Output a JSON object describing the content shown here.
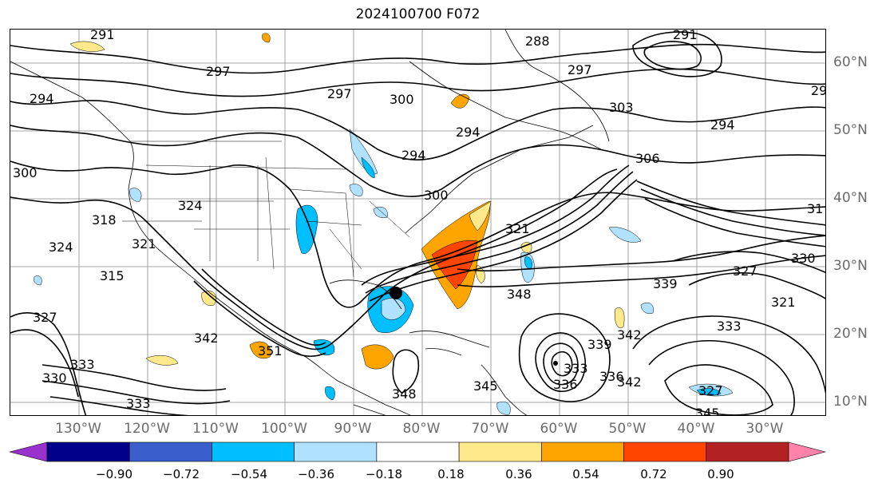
{
  "title": "2024100700 F072",
  "lat_labels": [
    "60°N",
    "50°N",
    "40°N",
    "30°N",
    "20°N",
    "10°N"
  ],
  "lon_labels": [
    "130°W",
    "120°W",
    "110°W",
    "100°W",
    "90°W",
    "80°W",
    "70°W",
    "60°W",
    "50°W",
    "40°W",
    "30°W"
  ],
  "colorbar": {
    "ticks": [
      "−0.90",
      "−0.72",
      "−0.54",
      "−0.36",
      "−0.18",
      "0.18",
      "0.36",
      "0.54",
      "0.72",
      "0.90"
    ],
    "colors": [
      "#9932cc",
      "#00008b",
      "#3a5fcd",
      "#00bfff",
      "#b0e2ff",
      "#ffffff",
      "#ffe98a",
      "#ffa500",
      "#ff4500",
      "#b22222",
      "#ff82ab"
    ]
  },
  "contour_labels": [
    "291",
    "288",
    "297",
    "297",
    "297",
    "294",
    "300",
    "303",
    "294",
    "306",
    "294",
    "29",
    "300",
    "294",
    "300",
    "318",
    "324",
    "324",
    "321",
    "315",
    "321",
    "31",
    "330",
    "339",
    "348",
    "327",
    "321",
    "333",
    "342",
    "339",
    "336",
    "333",
    "327",
    "336",
    "333",
    "330",
    "345",
    "345",
    "333",
    "327",
    "342",
    "351",
    "348",
    "342",
    "291"
  ]
}
